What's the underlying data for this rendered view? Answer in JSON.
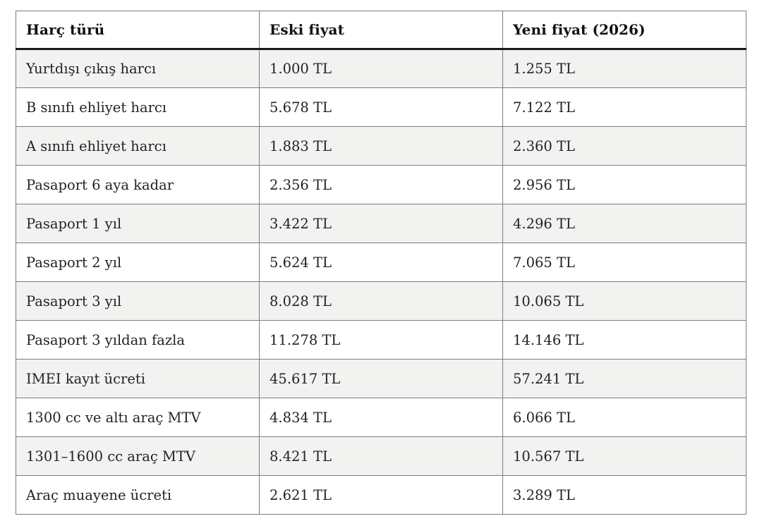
{
  "colors": {
    "page_bg": "#ffffff",
    "stripe": "#f2f2f1",
    "row_alt": "#ffffff",
    "grid_border": "#7d7d7d",
    "header_rule": "#1a1a1a",
    "header_bg": "#ffffff",
    "header_text": "#111111",
    "text": "#232323"
  },
  "table": {
    "headers": [
      "Harç türü",
      "Eski fiyat",
      "Yeni fiyat (2026)"
    ],
    "rows": [
      [
        "Yurtdışı çıkış harcı",
        "1.000 TL",
        "1.255 TL"
      ],
      [
        "B sınıfı ehliyet harcı",
        "5.678 TL",
        "7.122 TL"
      ],
      [
        "A sınıfı ehliyet harcı",
        "1.883 TL",
        "2.360 TL"
      ],
      [
        "Pasaport 6 aya kadar",
        "2.356 TL",
        "2.956 TL"
      ],
      [
        "Pasaport 1 yıl",
        "3.422 TL",
        "4.296 TL"
      ],
      [
        "Pasaport 2 yıl",
        "5.624 TL",
        "7.065 TL"
      ],
      [
        "Pasaport 3 yıl",
        "8.028 TL",
        "10.065 TL"
      ],
      [
        "Pasaport 3 yıldan fazla",
        "11.278 TL",
        "14.146 TL"
      ],
      [
        "IMEI kayıt ücreti",
        "45.617 TL",
        "57.241 TL"
      ],
      [
        "1300 cc ve altı araç MTV",
        "4.834 TL",
        "6.066 TL"
      ],
      [
        "1301–1600 cc araç MTV",
        "8.421 TL",
        "10.567 TL"
      ],
      [
        "Araç muayene ücreti",
        "2.621 TL",
        "3.289 TL"
      ]
    ]
  }
}
